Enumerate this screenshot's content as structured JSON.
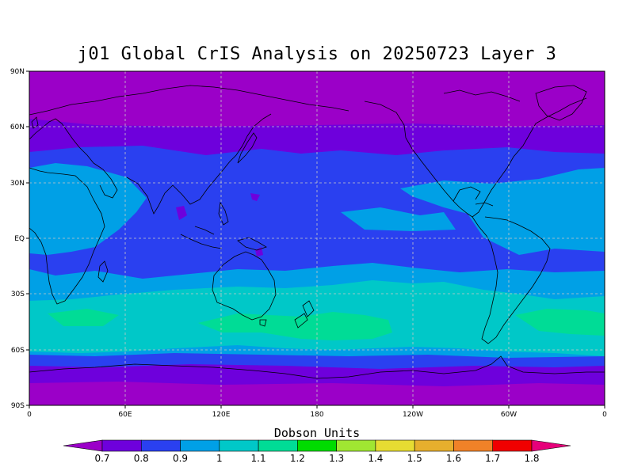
{
  "map": {
    "title": "j01 Global CrIS Analysis on 20250723 Layer 3",
    "lat_labels": [
      "90N",
      "60N",
      "30N",
      "EQ",
      "30S",
      "60S",
      "90S"
    ],
    "lon_labels": [
      "0",
      "60E",
      "120E",
      "180",
      "120W",
      "60W",
      "0"
    ],
    "colorbar": {
      "title": "Dobson Units",
      "labels": [
        "0.7",
        "0.8",
        "0.9",
        "1",
        "1.1",
        "1.2",
        "1.3",
        "1.4",
        "1.5",
        "1.6",
        "1.7",
        "1.8"
      ],
      "colors": [
        "#9b00c8",
        "#6e00dc",
        "#2a40f0",
        "#00a0e6",
        "#00c8c8",
        "#00dc96",
        "#00dc00",
        "#a0e632",
        "#e6dc32",
        "#e6af2d",
        "#f08228",
        "#f00000",
        "#e6007a"
      ]
    },
    "field_colors": {
      "lt_0_7": "#9b00c8",
      "b_0_7_0_8": "#6e00dc",
      "b_0_8_0_9": "#2a40f0",
      "b_0_9_1": "#00a0e6",
      "b_1_1_1": "#00c8c8",
      "b_1_1_1_2": "#00dc96"
    },
    "grid_color": "#c8c8c8"
  }
}
